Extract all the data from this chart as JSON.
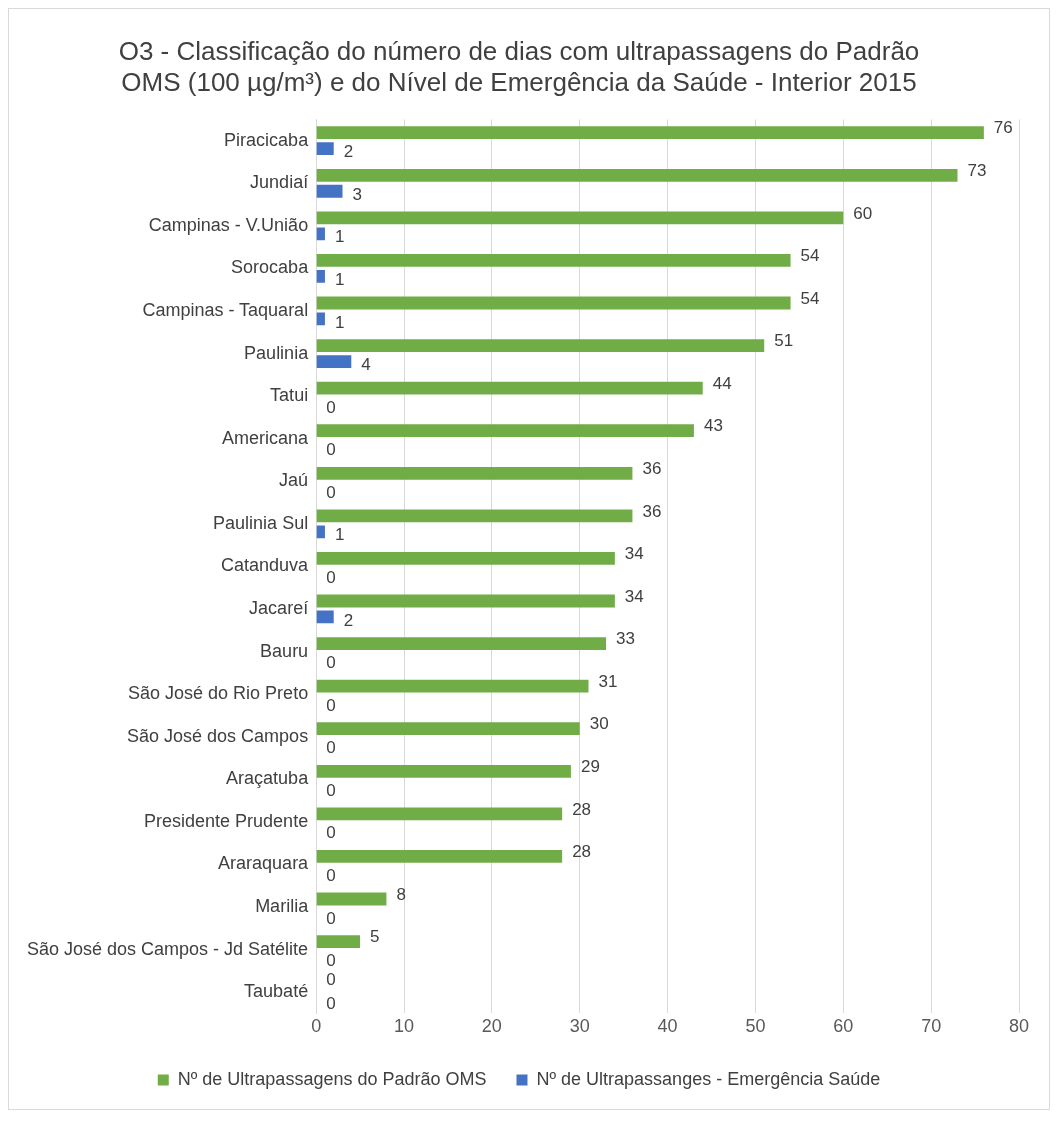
{
  "chart_data": {
    "type": "bar",
    "orientation": "horizontal",
    "title": "O3 - Classificação do número de dias com ultrapassagens do Padrão OMS (100 µg/m³) e do Nível de Emergência da Saúde - Interior 2015",
    "categories": [
      "Piracicaba",
      "Jundiaí",
      "Campinas - V.União",
      "Sorocaba",
      "Campinas - Taquaral",
      "Paulinia",
      "Tatui",
      "Americana",
      "Jaú",
      "Paulinia Sul",
      "Catanduva",
      "Jacareí",
      "Bauru",
      "São José do Rio Preto",
      "São José dos Campos",
      "Araçatuba",
      "Presidente Prudente",
      "Araraquara",
      "Marilia",
      "São José dos Campos - Jd Satélite",
      "Taubaté"
    ],
    "series": [
      {
        "name": "Nº de Ultrapassagens do Padrão OMS",
        "color": "#70ad47",
        "values": [
          76,
          73,
          60,
          54,
          54,
          51,
          44,
          43,
          36,
          36,
          34,
          34,
          33,
          31,
          30,
          29,
          28,
          28,
          8,
          5,
          0
        ]
      },
      {
        "name": "Nº de Ultrapassanges - Emergência Saúde",
        "color": "#4472c4",
        "values": [
          2,
          3,
          1,
          1,
          1,
          4,
          0,
          0,
          0,
          1,
          0,
          2,
          0,
          0,
          0,
          0,
          0,
          0,
          0,
          0,
          0
        ]
      }
    ],
    "xlim": [
      0,
      80
    ],
    "xticks": [
      0,
      10,
      20,
      30,
      40,
      50,
      60,
      70,
      80
    ],
    "grid": "x",
    "legend": "bottom",
    "data_labels": true
  }
}
